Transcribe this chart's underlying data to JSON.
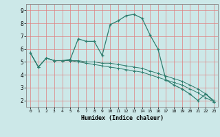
{
  "xlabel": "Humidex (Indice chaleur)",
  "bg_color": "#cce8e8",
  "grid_color": "#e08080",
  "line_color": "#2e7d6e",
  "xlim": [
    -0.5,
    23.5
  ],
  "ylim": [
    1.5,
    9.5
  ],
  "xticks": [
    0,
    1,
    2,
    3,
    4,
    5,
    6,
    7,
    8,
    9,
    10,
    11,
    12,
    13,
    14,
    15,
    16,
    17,
    18,
    19,
    20,
    21,
    22,
    23
  ],
  "yticks": [
    2,
    3,
    4,
    5,
    6,
    7,
    8,
    9
  ],
  "series1_x": [
    0,
    1,
    2,
    3,
    4,
    5,
    6,
    7,
    8,
    9,
    10,
    11,
    12,
    13,
    14,
    15,
    16,
    17,
    18,
    19,
    20,
    21,
    22,
    23
  ],
  "series1_y": [
    5.7,
    4.6,
    5.3,
    5.1,
    5.1,
    5.2,
    6.8,
    6.6,
    6.6,
    5.5,
    7.9,
    8.2,
    8.6,
    8.7,
    8.4,
    7.1,
    6.0,
    3.6,
    3.2,
    2.9,
    2.5,
    2.0,
    2.5,
    1.9
  ],
  "series2_x": [
    0,
    1,
    2,
    3,
    4,
    5,
    6,
    7,
    8,
    9,
    10,
    11,
    12,
    13,
    14,
    15,
    16,
    17,
    18,
    19,
    20,
    21,
    22,
    23
  ],
  "series2_y": [
    5.7,
    4.6,
    5.3,
    5.1,
    5.1,
    5.1,
    5.1,
    5.0,
    5.0,
    4.9,
    4.9,
    4.8,
    4.7,
    4.6,
    4.5,
    4.3,
    4.1,
    3.9,
    3.7,
    3.5,
    3.2,
    2.9,
    2.5,
    2.0
  ],
  "series3_x": [
    0,
    1,
    2,
    3,
    4,
    5,
    6,
    7,
    8,
    9,
    10,
    11,
    12,
    13,
    14,
    15,
    16,
    17,
    18,
    19,
    20,
    21,
    22,
    23
  ],
  "series3_y": [
    5.7,
    4.6,
    5.3,
    5.1,
    5.1,
    5.1,
    5.0,
    4.9,
    4.8,
    4.7,
    4.6,
    4.5,
    4.4,
    4.3,
    4.2,
    4.0,
    3.8,
    3.6,
    3.4,
    3.2,
    2.9,
    2.6,
    2.2,
    1.9
  ]
}
